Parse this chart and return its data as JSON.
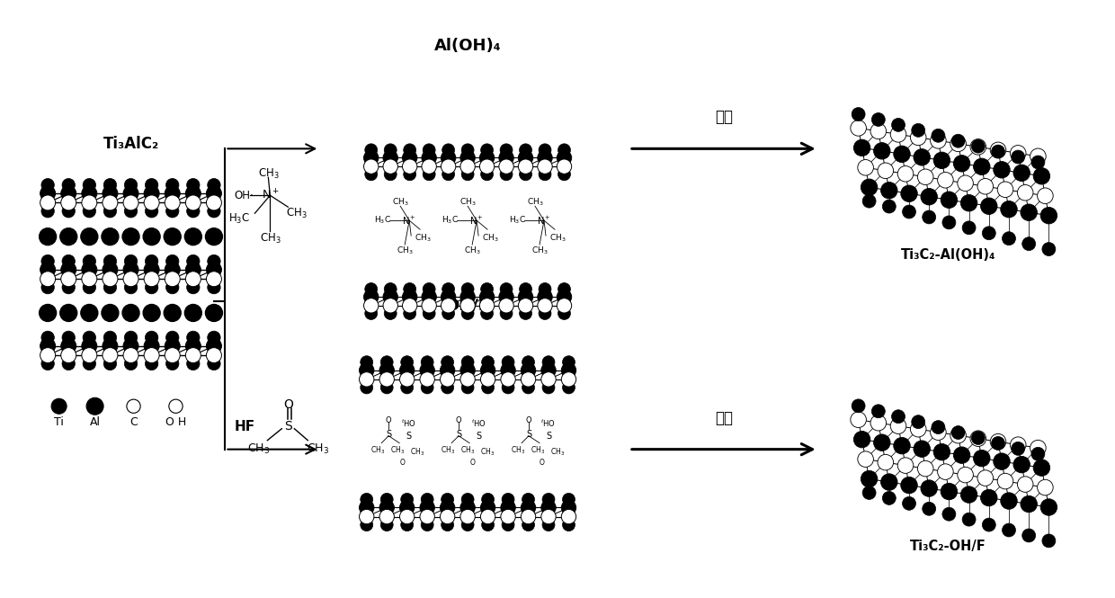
{
  "bg_color": "#ffffff",
  "fig_width": 12.4,
  "fig_height": 6.65,
  "dpi": 100,
  "labels": {
    "ti3alc2_title": "Ti₃AlC₂",
    "al_oh4_label": "Al(OH)₄",
    "ohf_label": "OH/F",
    "product1": "Ti₃C₂-Al(OH)₄",
    "product2": "Ti₃C₂-OH/F",
    "hf_label": "HF",
    "arrow1": "手摇",
    "arrow2": "超声",
    "leg_ti": "Ti",
    "leg_al": "Al",
    "leg_c": "C",
    "leg_oh": "O H"
  }
}
